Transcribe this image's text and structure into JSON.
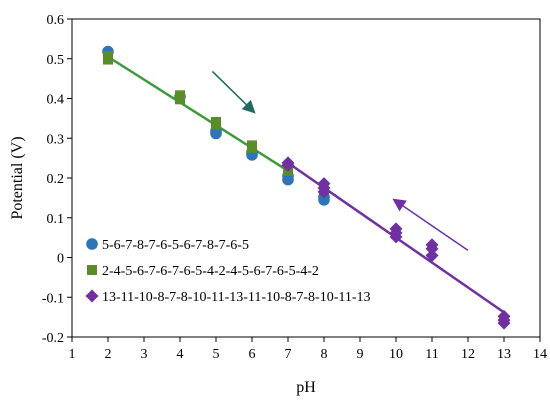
{
  "chart_data": {
    "type": "scatter",
    "xlabel": "pH",
    "ylabel": "Potential (V)",
    "xlim": [
      1,
      14
    ],
    "ylim": [
      -0.2,
      0.6
    ],
    "x_ticks": [
      1,
      2,
      3,
      4,
      5,
      6,
      7,
      8,
      9,
      10,
      11,
      12,
      13,
      14
    ],
    "y_ticks": [
      -0.2,
      -0.1,
      0,
      0.1,
      0.2,
      0.3,
      0.4,
      0.5,
      0.6
    ],
    "y_tick_labels": [
      "-0.2",
      "-0.1",
      "0",
      "0.1",
      "0.2",
      "0.3",
      "0.4",
      "0.5",
      "0.6"
    ],
    "grid": false,
    "legend_position": "bottom-left",
    "series": [
      {
        "name": "5-6-7-8-7-6-5-6-7-8-7-6-5",
        "marker": "circle",
        "color": "#2E75B6",
        "points": [
          [
            2,
            0.518
          ],
          [
            4,
            0.405
          ],
          [
            5,
            0.318
          ],
          [
            5,
            0.312
          ],
          [
            6,
            0.265
          ],
          [
            6,
            0.258
          ],
          [
            7,
            0.205
          ],
          [
            7,
            0.196
          ],
          [
            8,
            0.152
          ],
          [
            8,
            0.145
          ]
        ]
      },
      {
        "name": "2-4-5-6-7-6-7-6-5-4-2-4-5-6-7-6-5-4-2",
        "marker": "square",
        "color": "#5A8C2A",
        "points": [
          [
            2,
            0.507
          ],
          [
            2,
            0.498
          ],
          [
            4,
            0.408
          ],
          [
            4,
            0.398
          ],
          [
            5,
            0.341
          ],
          [
            5,
            0.335
          ],
          [
            6,
            0.282
          ],
          [
            6,
            0.276
          ],
          [
            7,
            0.222
          ],
          [
            7,
            0.218
          ]
        ]
      },
      {
        "name": "13-11-10-8-7-8-10-11-13-11-10-8-7-8-10-11-13",
        "marker": "diamond",
        "color": "#7030A0",
        "points": [
          [
            7,
            0.238
          ],
          [
            7,
            0.232
          ],
          [
            8,
            0.186
          ],
          [
            8,
            0.175
          ],
          [
            8,
            0.165
          ],
          [
            10,
            0.072
          ],
          [
            10,
            0.062
          ],
          [
            10,
            0.052
          ],
          [
            11,
            0.032
          ],
          [
            11,
            0.022
          ],
          [
            11,
            0.005
          ],
          [
            13,
            -0.148
          ],
          [
            13,
            -0.158
          ],
          [
            13,
            -0.165
          ]
        ]
      }
    ],
    "fit_lines": [
      {
        "series": "2-4-5-6-7-6-7-6-5-4-2-4-5-6-7-6-5-4-2",
        "color": "#3C9A3C",
        "from": [
          2,
          0.505
        ],
        "to": [
          7,
          0.218
        ]
      },
      {
        "series": "13-11-10-8-7-8-10-11-13-11-10-8-7-8-10-11-13",
        "color": "#7030A0",
        "from": [
          7,
          0.238
        ],
        "to": [
          13,
          -0.138
        ]
      }
    ],
    "arrows": [
      {
        "color": "#1F6B5E",
        "from": [
          4.9,
          0.468
        ],
        "to": [
          6.1,
          0.362
        ]
      },
      {
        "color": "#7030A0",
        "from": [
          12.0,
          0.018
        ],
        "to": [
          9.9,
          0.148
        ]
      }
    ]
  }
}
